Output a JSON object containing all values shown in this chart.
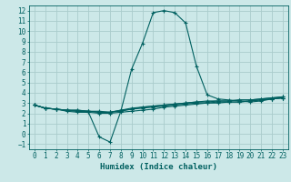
{
  "background_color": "#cce8e8",
  "grid_color": "#aacccc",
  "line_color": "#006060",
  "xlabel": "Humidex (Indice chaleur)",
  "xlim": [
    -0.5,
    23.5
  ],
  "ylim": [
    -1.5,
    12.5
  ],
  "xticks": [
    0,
    1,
    2,
    3,
    4,
    5,
    6,
    7,
    8,
    9,
    10,
    11,
    12,
    13,
    14,
    15,
    16,
    17,
    18,
    19,
    20,
    21,
    22,
    23
  ],
  "yticks": [
    -1,
    0,
    1,
    2,
    3,
    4,
    5,
    6,
    7,
    8,
    9,
    10,
    11,
    12
  ],
  "series": [
    [
      2.8,
      2.5,
      2.4,
      2.3,
      2.2,
      2.1,
      -0.3,
      -0.8,
      2.2,
      6.3,
      8.8,
      11.8,
      12.0,
      11.8,
      10.8,
      6.6,
      3.8,
      3.4,
      3.3,
      3.2,
      3.1,
      3.2,
      3.4,
      3.5
    ],
    [
      2.8,
      2.5,
      2.4,
      2.3,
      2.2,
      2.2,
      2.1,
      2.1,
      2.3,
      2.4,
      2.5,
      2.6,
      2.7,
      2.8,
      2.9,
      3.0,
      3.0,
      3.1,
      3.1,
      3.1,
      3.2,
      3.3,
      3.4,
      3.5
    ],
    [
      2.8,
      2.5,
      2.4,
      2.2,
      2.1,
      2.1,
      2.0,
      2.0,
      2.1,
      2.2,
      2.3,
      2.4,
      2.6,
      2.7,
      2.8,
      2.9,
      3.0,
      3.0,
      3.1,
      3.1,
      3.2,
      3.3,
      3.4,
      3.5
    ],
    [
      2.8,
      2.5,
      2.4,
      2.3,
      2.3,
      2.2,
      2.1,
      2.1,
      2.2,
      2.4,
      2.6,
      2.7,
      2.8,
      2.9,
      3.0,
      3.1,
      3.1,
      3.2,
      3.2,
      3.3,
      3.3,
      3.4,
      3.5,
      3.6
    ],
    [
      2.8,
      2.5,
      2.4,
      2.3,
      2.3,
      2.2,
      2.2,
      2.1,
      2.3,
      2.5,
      2.6,
      2.7,
      2.8,
      2.9,
      3.0,
      3.1,
      3.2,
      3.2,
      3.2,
      3.3,
      3.3,
      3.4,
      3.5,
      3.6
    ]
  ],
  "title_fontsize": 6,
  "tick_fontsize": 5.5,
  "xlabel_fontsize": 6.5
}
